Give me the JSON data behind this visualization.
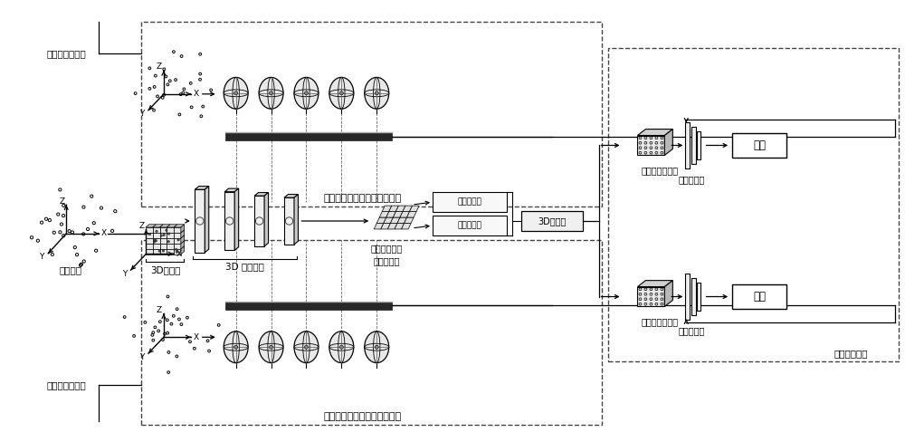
{
  "bg_color": "#ffffff",
  "labels": {
    "tezheng_farthest": "特征最远点采样",
    "juli_farthest": "距离最远点采样",
    "yuanshi_cloud": "原始点云",
    "tezheng_module": "特征最远点采样序列提取模块",
    "juli_module": "距离最远点采样序列提取模块",
    "voxelize_3d": "3D体素化",
    "sparse_conv": "3D 稀疏卷积",
    "birdview_line1": "鸟瞰图投影及",
    "birdview_line2": "建议框生成",
    "target_classifier": "目标分类器",
    "target_generator": "目标生成器",
    "box_3d": "3D建议框",
    "roi_pool_top": "感兴趣区域池化",
    "roi_pool_bot": "感兴趣区域池化",
    "mlp_top": "多层感知机",
    "mlp_bot": "多层感知机",
    "classify": "分类",
    "regress": "回归",
    "finetune": "微调预测模块"
  },
  "colors": {
    "black": "#000000",
    "white": "#ffffff",
    "bar_dark": "#303030",
    "dashed_border": "#444444"
  }
}
